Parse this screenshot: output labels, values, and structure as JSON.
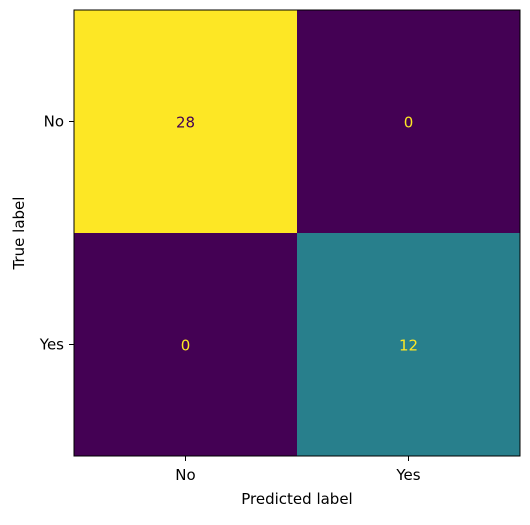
{
  "chart_data": {
    "type": "heatmap",
    "title": "",
    "xlabel": "Predicted label",
    "ylabel": "True label",
    "x_categories": [
      "No",
      "Yes"
    ],
    "y_categories": [
      "No",
      "Yes"
    ],
    "values": [
      [
        28,
        0
      ],
      [
        0,
        12
      ]
    ],
    "colormap": "viridis",
    "value_range": [
      0,
      28
    ],
    "colorbar": false,
    "grid": false,
    "text_color_light": "#fde725",
    "text_color_dark": "#440154"
  }
}
